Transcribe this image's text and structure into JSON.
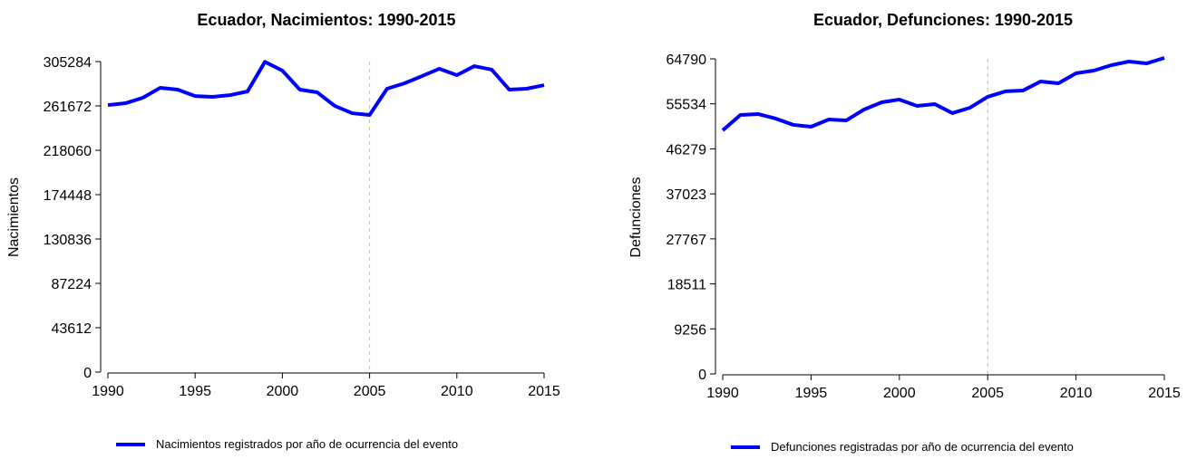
{
  "chart_data": [
    {
      "type": "line",
      "title": "Ecuador, Nacimientos: 1990-2015",
      "y_label": "Nacimientos",
      "x": [
        1990,
        1991,
        1992,
        1993,
        1994,
        1995,
        1996,
        1997,
        1998,
        1999,
        2000,
        2001,
        2002,
        2003,
        2004,
        2005,
        2006,
        2007,
        2008,
        2009,
        2010,
        2011,
        2012,
        2013,
        2014,
        2015
      ],
      "series": [
        {
          "name": "Nacimientos registrados por año de ocurrencia del evento",
          "color": "#0000ff",
          "values": [
            262500,
            264300,
            269700,
            279500,
            277700,
            271400,
            270600,
            272300,
            275900,
            305000,
            296400,
            277700,
            275000,
            261700,
            254500,
            252800,
            278600,
            283900,
            291000,
            298200,
            291900,
            300800,
            297300,
            277700,
            278600,
            282100
          ]
        }
      ],
      "xlim": [
        1990,
        2015
      ],
      "xticks": [
        1990,
        1995,
        2000,
        2005,
        2010,
        2015
      ],
      "ylim": [
        0,
        305284
      ],
      "yticks": [
        0,
        43612,
        87224,
        130836,
        174448,
        218060,
        261672,
        305284
      ],
      "vline": 2005
    },
    {
      "type": "line",
      "title": "Ecuador, Defunciones: 1990-2015",
      "y_label": "Defunciones",
      "x": [
        1990,
        1991,
        1992,
        1993,
        1994,
        1995,
        1996,
        1997,
        1998,
        1999,
        2000,
        2001,
        2002,
        2003,
        2004,
        2005,
        2006,
        2007,
        2008,
        2009,
        2010,
        2011,
        2012,
        2013,
        2014,
        2015
      ],
      "series": [
        {
          "name": "Defunciones registradas por año de ocurrencia del evento",
          "color": "#0000ff",
          "values": [
            50090,
            53250,
            53440,
            52510,
            51210,
            50830,
            52320,
            52140,
            54370,
            55860,
            56420,
            55110,
            55490,
            53630,
            54740,
            56980,
            58100,
            58280,
            60140,
            59770,
            61820,
            62370,
            63490,
            64240,
            63860,
            64980
          ]
        }
      ],
      "xlim": [
        1990,
        2015
      ],
      "xticks": [
        1990,
        1995,
        2000,
        2005,
        2010,
        2015
      ],
      "ylim": [
        0,
        64790
      ],
      "yticks": [
        0,
        9256,
        18511,
        27767,
        37023,
        46279,
        55534,
        64790
      ],
      "vline": 2005
    }
  ]
}
